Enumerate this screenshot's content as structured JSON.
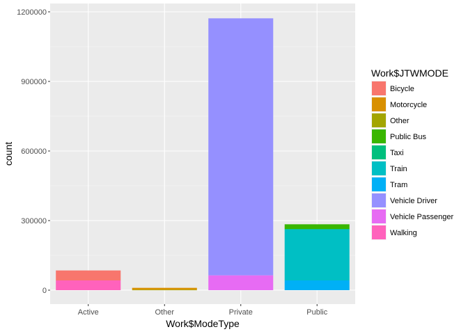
{
  "chart_data": {
    "type": "bar",
    "stacked": true,
    "categories": [
      "Active",
      "Other",
      "Private",
      "Public"
    ],
    "xlabel": "Work$ModeType",
    "ylabel": "count",
    "ylim": [
      0,
      1260000
    ],
    "yticks": [
      0,
      300000,
      600000,
      900000,
      1200000
    ],
    "ytick_labels": [
      "0",
      "300000",
      "600000",
      "900000",
      "1200000"
    ],
    "grid": true,
    "legend": {
      "title": "Work$JTWMODE",
      "position": "right",
      "entries": [
        {
          "name": "Bicycle",
          "color": "#F8766D"
        },
        {
          "name": "Motorcycle",
          "color": "#D89000"
        },
        {
          "name": "Other",
          "color": "#A3A500"
        },
        {
          "name": "Public Bus",
          "color": "#39B600"
        },
        {
          "name": "Taxi",
          "color": "#00BF7D"
        },
        {
          "name": "Train",
          "color": "#00BFC4"
        },
        {
          "name": "Tram",
          "color": "#00B0F6"
        },
        {
          "name": "Vehicle Driver",
          "color": "#9590FF"
        },
        {
          "name": "Vehicle Passenger",
          "color": "#E76BF3"
        },
        {
          "name": "Walking",
          "color": "#FF62BC"
        }
      ]
    },
    "series": [
      {
        "name": "Bicycle",
        "values": [
          43000,
          0,
          0,
          0
        ]
      },
      {
        "name": "Motorcycle",
        "values": [
          0,
          8000,
          0,
          0
        ]
      },
      {
        "name": "Other",
        "values": [
          0,
          2000,
          0,
          0
        ]
      },
      {
        "name": "Public Bus",
        "values": [
          0,
          0,
          0,
          20000
        ]
      },
      {
        "name": "Taxi",
        "values": [
          0,
          0,
          0,
          2000
        ]
      },
      {
        "name": "Train",
        "values": [
          0,
          0,
          0,
          220000
        ]
      },
      {
        "name": "Tram",
        "values": [
          0,
          0,
          0,
          42000
        ]
      },
      {
        "name": "Vehicle Driver",
        "values": [
          0,
          0,
          1108000,
          0
        ]
      },
      {
        "name": "Vehicle Passenger",
        "values": [
          0,
          0,
          64000,
          0
        ]
      },
      {
        "name": "Walking",
        "values": [
          42000,
          0,
          0,
          0
        ]
      }
    ]
  }
}
